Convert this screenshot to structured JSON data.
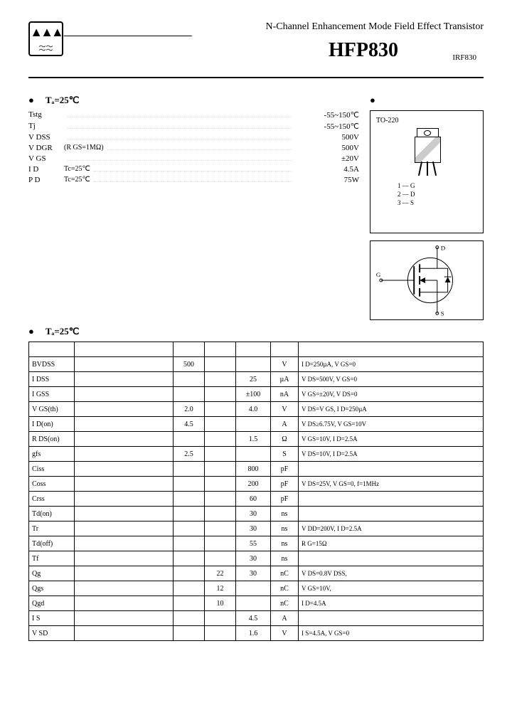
{
  "header": {
    "subtitle": "N-Channel Enhancement Mode Field Effect Transistor",
    "title": "HFP830",
    "alt": "IRF830"
  },
  "ratings_header": "Tₐ=25℃",
  "ratings": [
    {
      "sym": "Tstg",
      "desc": "",
      "val": "-55~150℃"
    },
    {
      "sym": "Tj",
      "desc": "",
      "val": "-55~150℃"
    },
    {
      "sym": "V DSS",
      "desc": "",
      "val": "500V"
    },
    {
      "sym": "V DGR",
      "desc": "(R GS=1MΩ)",
      "val": "500V"
    },
    {
      "sym": "V GS",
      "desc": "",
      "val": "±20V"
    },
    {
      "sym": "I D",
      "desc": "Tc=25℃",
      "val": "4.5A"
    },
    {
      "sym": "P D",
      "desc": "Tc=25℃",
      "val": "75W"
    }
  ],
  "package": {
    "name": "TO-220",
    "pins": [
      "1 — G",
      "2 — D",
      "3 — S"
    ]
  },
  "params_header": "Tₐ=25℃",
  "cols": [
    "",
    "",
    "",
    "",
    "",
    "",
    ""
  ],
  "params": [
    {
      "sym": "BVDSS",
      "min": "500",
      "typ": "",
      "max": "",
      "unit": "V",
      "cond": "I D=250µA, V GS=0"
    },
    {
      "sym": "I DSS",
      "min": "",
      "typ": "",
      "max": "25",
      "unit": "µA",
      "cond": "V DS=500V, V GS=0"
    },
    {
      "sym": "I GSS",
      "min": "",
      "typ": "",
      "max": "±100",
      "unit": "nA",
      "cond": "V GS=±20V, V DS=0"
    },
    {
      "sym": "V GS(th)",
      "min": "2.0",
      "typ": "",
      "max": "4.0",
      "unit": "V",
      "cond": "V DS=V GS, I D=250µA"
    },
    {
      "sym": "I D(on)",
      "min": "4.5",
      "typ": "",
      "max": "",
      "unit": "A",
      "cond": "V DS≥6.75V, V GS=10V"
    },
    {
      "sym": "R DS(on)",
      "min": "",
      "typ": "",
      "max": "1.5",
      "unit": "Ω",
      "cond": "V GS=10V, I D=2.5A"
    },
    {
      "sym": "gfs",
      "min": "2.5",
      "typ": "",
      "max": "",
      "unit": "S",
      "cond": "V DS=10V, I D=2.5A"
    },
    {
      "sym": "Ciss",
      "min": "",
      "typ": "",
      "max": "800",
      "unit": "pF",
      "cond": ""
    },
    {
      "sym": "Coss",
      "min": "",
      "typ": "",
      "max": "200",
      "unit": "pF",
      "cond": "V DS=25V, V GS=0, f=1MHz"
    },
    {
      "sym": "Crss",
      "min": "",
      "typ": "",
      "max": "60",
      "unit": "pF",
      "cond": ""
    },
    {
      "sym": "Td(on)",
      "min": "",
      "typ": "",
      "max": "30",
      "unit": "ns",
      "cond": ""
    },
    {
      "sym": "Tr",
      "min": "",
      "typ": "",
      "max": "30",
      "unit": "ns",
      "cond": "V DD=200V, I D=2.5A"
    },
    {
      "sym": "Td(off)",
      "min": "",
      "typ": "",
      "max": "55",
      "unit": "ns",
      "cond": "R G=15Ω"
    },
    {
      "sym": "Tf",
      "min": "",
      "typ": "",
      "max": "30",
      "unit": "ns",
      "cond": ""
    },
    {
      "sym": "Qg",
      "min": "",
      "typ": "22",
      "max": "30",
      "unit": "nC",
      "cond": "V DS=0.8V DSS,"
    },
    {
      "sym": "Qgs",
      "min": "",
      "typ": "12",
      "max": "",
      "unit": "nC",
      "cond": "V GS=10V,"
    },
    {
      "sym": "Qgd",
      "min": "",
      "typ": "10",
      "max": "",
      "unit": "nC",
      "cond": "I D=4.5A"
    },
    {
      "sym": "I S",
      "min": "",
      "typ": "",
      "max": "4.5",
      "unit": "A",
      "cond": ""
    },
    {
      "sym": "V SD",
      "min": "",
      "typ": "",
      "max": "1.6",
      "unit": "V",
      "cond": "I S=4.5A, V GS=0"
    }
  ]
}
